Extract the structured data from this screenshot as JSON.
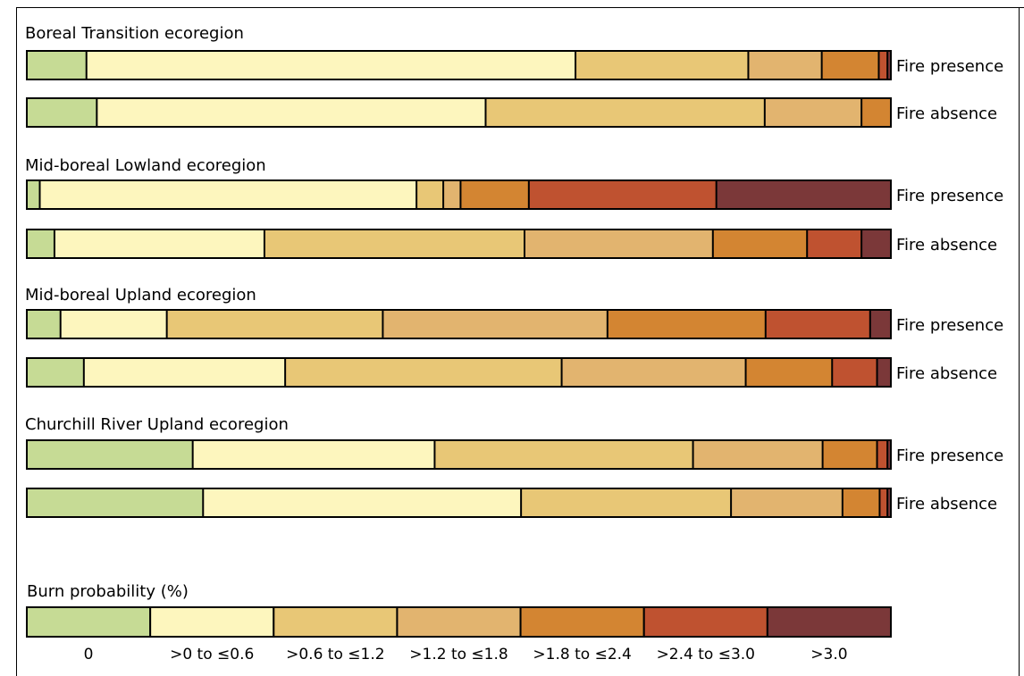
{
  "chart_data": {
    "type": "bar",
    "orientation": "horizontal",
    "stacked": true,
    "units": "percent of area",
    "legend_title": "Burn probability (%)",
    "legend_placement": "bottom",
    "classes": [
      {
        "label": "0",
        "color": "#c6db95"
      },
      {
        "label": ">0 to ≤0.6",
        "color": "#fdf6be"
      },
      {
        "label": ">0.6 to ≤1.2",
        "color": "#e8c776"
      },
      {
        "label": ">1.2 to ≤1.8",
        "color": "#e2b46f"
      },
      {
        "label": ">1.8 to ≤2.4",
        "color": "#d38532"
      },
      {
        "label": ">2.4 to ≤3.0",
        "color": "#bf5230"
      },
      {
        "label": ">3.0",
        "color": "#7b3839"
      }
    ],
    "groups": [
      {
        "title": "Boreal Transition ecoregion",
        "bars": [
          {
            "label": "Fire presence",
            "values": [
              6.9,
              56.6,
              20.0,
              8.5,
              6.6,
              1.0,
              0.4
            ]
          },
          {
            "label": "Fire absence",
            "values": [
              8.1,
              45.0,
              32.3,
              11.2,
              3.4,
              0.0,
              0.0
            ]
          }
        ]
      },
      {
        "title": "Mid-boreal Lowland ecoregion",
        "bars": [
          {
            "label": "Fire presence",
            "values": [
              1.5,
              43.6,
              3.1,
              2.0,
              7.9,
              21.7,
              20.2
            ]
          },
          {
            "label": "Fire absence",
            "values": [
              3.2,
              24.3,
              30.1,
              21.8,
              10.9,
              6.3,
              3.4
            ]
          }
        ]
      },
      {
        "title": "Mid-boreal Upland ecoregion",
        "bars": [
          {
            "label": "Fire presence",
            "values": [
              3.9,
              12.3,
              25.0,
              26.0,
              18.3,
              12.1,
              2.4
            ]
          },
          {
            "label": "Fire absence",
            "values": [
              6.6,
              23.3,
              32.0,
              21.3,
              10.0,
              5.2,
              1.6
            ]
          }
        ]
      },
      {
        "title": "Churchill River Upland ecoregion",
        "bars": [
          {
            "label": "Fire presence",
            "values": [
              19.2,
              28.0,
              29.9,
              15.0,
              6.3,
              1.2,
              0.4
            ]
          },
          {
            "label": "Fire absence",
            "values": [
              20.4,
              36.8,
              24.3,
              12.9,
              4.3,
              0.9,
              0.4
            ]
          }
        ]
      }
    ]
  }
}
